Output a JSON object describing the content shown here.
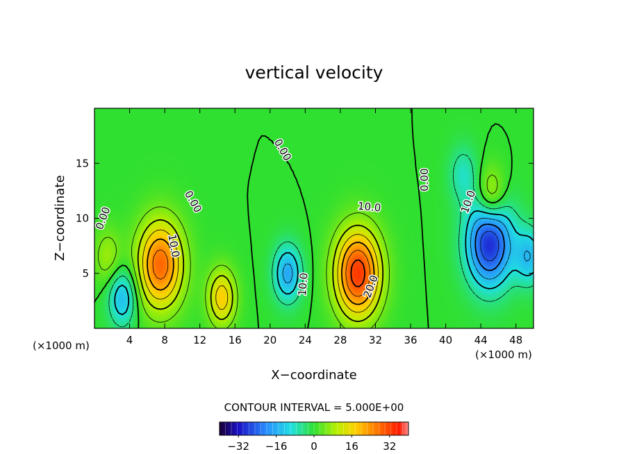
{
  "chart_data": {
    "type": "contour",
    "title": "vertical velocity",
    "xlabel": "X−coordinate",
    "ylabel": "Z−coordinate",
    "x_unit_left": "(×1000 m)",
    "x_unit_right": "(×1000 m)",
    "xlim": [
      0,
      50
    ],
    "ylim": [
      0,
      20
    ],
    "x_ticks": [
      4,
      8,
      12,
      16,
      20,
      24,
      28,
      32,
      36,
      40,
      44,
      48
    ],
    "y_ticks": [
      5,
      10,
      15
    ],
    "contour_interval_text": "CONTOUR INTERVAL = 5.000E+00",
    "colorbar": {
      "range": [
        -40,
        40
      ],
      "ticks": [
        -32,
        -16,
        0,
        16,
        32
      ],
      "tick_labels": [
        "−32",
        "−16",
        "0",
        "16",
        "32"
      ]
    },
    "contour_labels": [
      {
        "text": "0.00",
        "x": 1.0,
        "y": 10.0,
        "rotate": -70
      },
      {
        "text": "10.0",
        "x": 9.0,
        "y": 7.5,
        "rotate": 80
      },
      {
        "text": "0.00",
        "x": 11.2,
        "y": 11.5,
        "rotate": 60
      },
      {
        "text": "0.00",
        "x": 21.4,
        "y": 16.2,
        "rotate": 60
      },
      {
        "text": "10.0",
        "x": 23.8,
        "y": 4.0,
        "rotate": -85
      },
      {
        "text": "10.0",
        "x": 31.3,
        "y": 11.0,
        "rotate": 5
      },
      {
        "text": "20.0",
        "x": 31.5,
        "y": 3.8,
        "rotate": -70
      },
      {
        "text": "0.00",
        "x": 37.6,
        "y": 13.5,
        "rotate": -90
      },
      {
        "text": "10.0",
        "x": 42.6,
        "y": 11.5,
        "rotate": -70
      }
    ],
    "features": [
      {
        "x": 7.5,
        "y": 5.8,
        "peak": 28
      },
      {
        "x": 30.0,
        "y": 5.0,
        "peak": 33
      },
      {
        "x": 14.5,
        "y": 2.8,
        "peak": 18
      },
      {
        "x": 45.0,
        "y": 7.8,
        "peak": -30
      },
      {
        "x": 22.0,
        "y": 5.0,
        "peak": -17
      },
      {
        "x": 3.2,
        "y": 2.8,
        "peak": -15
      },
      {
        "x": 45.2,
        "y": 12.0,
        "peak": 14
      },
      {
        "x": 49.5,
        "y": 6.5,
        "peak": -14
      },
      {
        "x": 42.0,
        "y": 14.0,
        "peak": -8
      },
      {
        "x": 1.5,
        "y": 6.5,
        "peak": 8
      }
    ]
  }
}
